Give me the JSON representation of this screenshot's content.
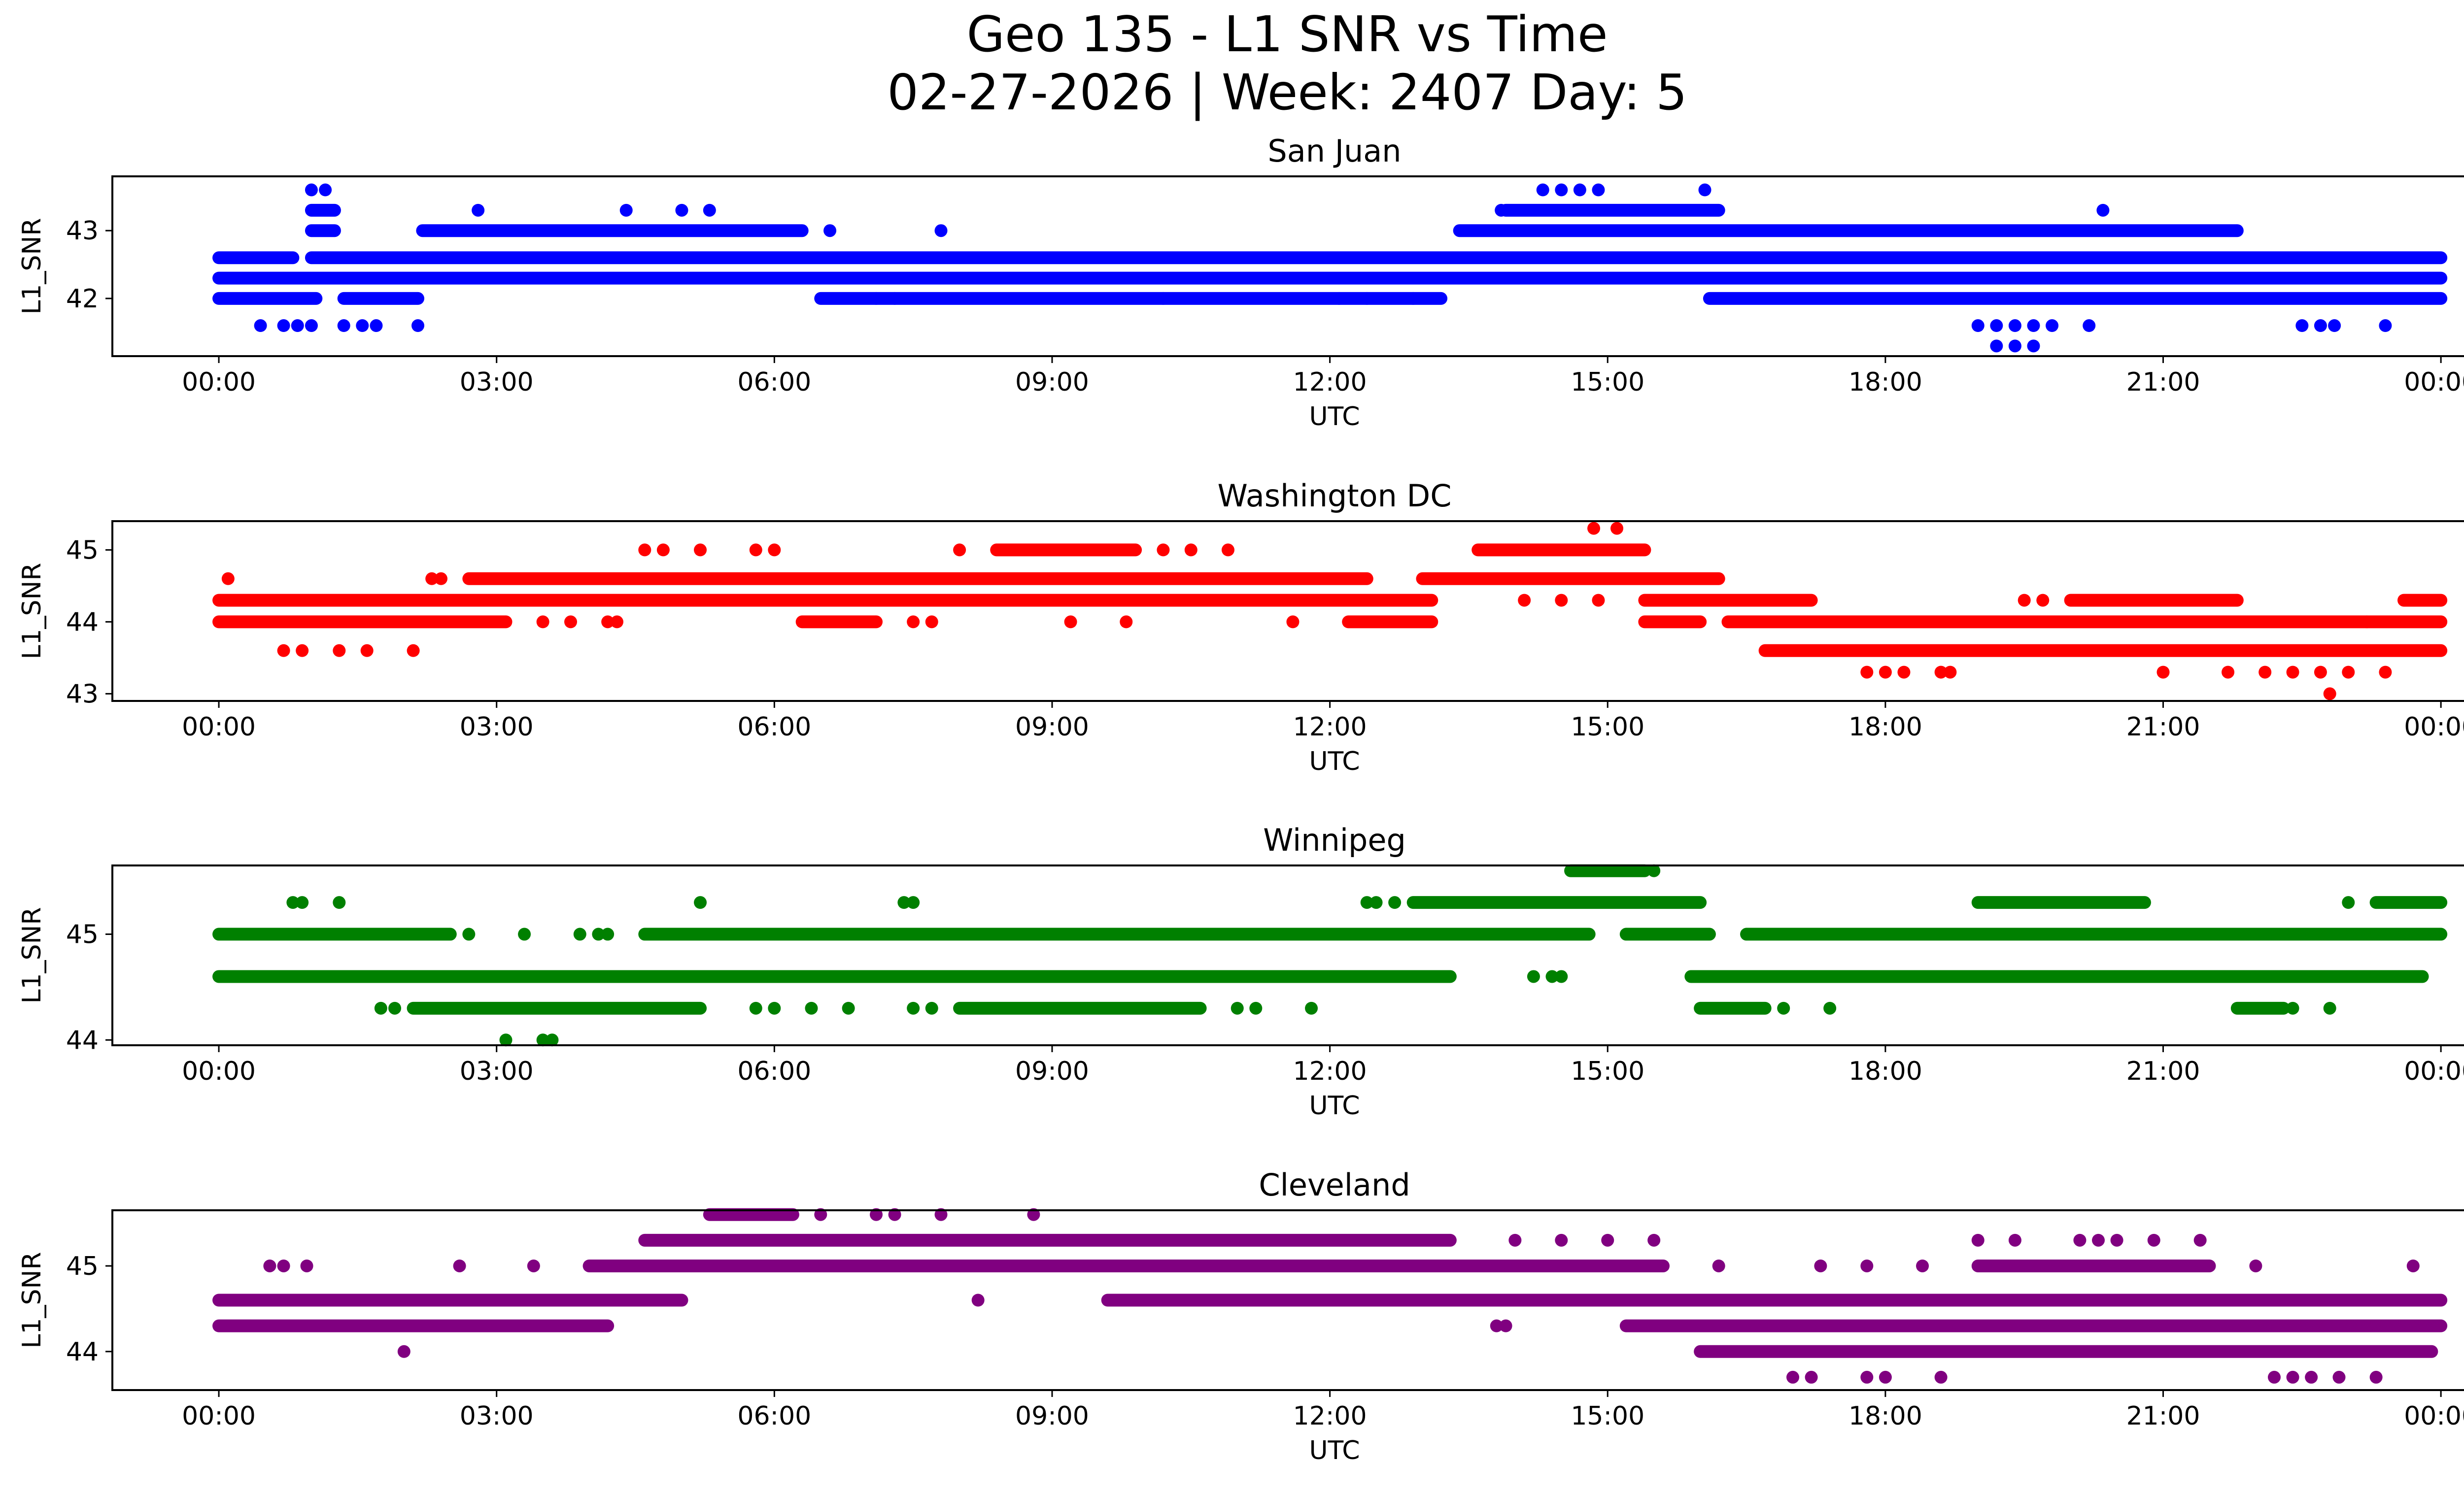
{
  "figure": {
    "title_line1": "Geo 135 - L1 SNR vs Time",
    "title_line2": "02-27-2026 | Week: 2407 Day: 5"
  },
  "chart_data": [
    {
      "type": "scatter",
      "title": "San Juan",
      "xlabel": "UTC",
      "ylabel": "L1_SNR",
      "color": "#0000ff",
      "xlim": [
        -1.15,
        25.25
      ],
      "ylim": [
        41.15,
        43.8
      ],
      "x_ticks": [
        0,
        3,
        6,
        9,
        12,
        15,
        18,
        21,
        24
      ],
      "x_tick_labels": [
        "00:00",
        "03:00",
        "06:00",
        "09:00",
        "12:00",
        "15:00",
        "18:00",
        "21:00",
        "00:00"
      ],
      "y_ticks": [
        42,
        43
      ],
      "y_tick_labels": [
        "42",
        "43"
      ],
      "bands": [
        {
          "y": 42.0,
          "ranges": [
            [
              0.0,
              1.05
            ],
            [
              1.35,
              2.15
            ],
            [
              6.5,
              13.2
            ],
            [
              16.1,
              24.0
            ]
          ]
        },
        {
          "y": 42.3,
          "ranges": [
            [
              0.0,
              24.0
            ]
          ]
        },
        {
          "y": 42.6,
          "ranges": [
            [
              0.0,
              0.8
            ],
            [
              1.0,
              24.0
            ]
          ]
        },
        {
          "y": 43.0,
          "ranges": [
            [
              1.0,
              1.25
            ],
            [
              2.2,
              6.3
            ],
            [
              13.4,
              21.8
            ]
          ]
        },
        {
          "y": 43.3,
          "ranges": [
            [
              1.0,
              1.25
            ],
            [
              13.9,
              16.2
            ]
          ]
        }
      ],
      "points": [
        {
          "x": 0.45,
          "y": 41.6
        },
        {
          "x": 0.7,
          "y": 41.6
        },
        {
          "x": 0.85,
          "y": 41.6
        },
        {
          "x": 1.0,
          "y": 41.6
        },
        {
          "x": 1.35,
          "y": 41.6
        },
        {
          "x": 1.55,
          "y": 41.6
        },
        {
          "x": 1.7,
          "y": 41.6
        },
        {
          "x": 2.15,
          "y": 41.6
        },
        {
          "x": 1.0,
          "y": 43.6
        },
        {
          "x": 1.15,
          "y": 43.6
        },
        {
          "x": 2.8,
          "y": 43.3
        },
        {
          "x": 4.4,
          "y": 43.3
        },
        {
          "x": 5.0,
          "y": 43.3
        },
        {
          "x": 5.3,
          "y": 43.3
        },
        {
          "x": 6.6,
          "y": 43.0
        },
        {
          "x": 7.8,
          "y": 43.0
        },
        {
          "x": 7.1,
          "y": 42.0
        },
        {
          "x": 7.3,
          "y": 42.0
        },
        {
          "x": 10.2,
          "y": 42.0
        },
        {
          "x": 12.1,
          "y": 42.0
        },
        {
          "x": 12.4,
          "y": 42.0
        },
        {
          "x": 12.9,
          "y": 42.0
        },
        {
          "x": 14.3,
          "y": 43.6
        },
        {
          "x": 14.5,
          "y": 43.6
        },
        {
          "x": 14.7,
          "y": 43.6
        },
        {
          "x": 14.9,
          "y": 43.6
        },
        {
          "x": 16.05,
          "y": 43.6
        },
        {
          "x": 13.85,
          "y": 43.3
        },
        {
          "x": 19.0,
          "y": 41.6
        },
        {
          "x": 19.2,
          "y": 41.6
        },
        {
          "x": 19.4,
          "y": 41.6
        },
        {
          "x": 19.6,
          "y": 41.6
        },
        {
          "x": 19.8,
          "y": 41.6
        },
        {
          "x": 20.2,
          "y": 41.6
        },
        {
          "x": 20.35,
          "y": 43.3
        },
        {
          "x": 19.2,
          "y": 41.3
        },
        {
          "x": 19.4,
          "y": 41.3
        },
        {
          "x": 19.6,
          "y": 41.3
        },
        {
          "x": 22.5,
          "y": 41.6
        },
        {
          "x": 22.7,
          "y": 41.6
        },
        {
          "x": 22.85,
          "y": 41.6
        },
        {
          "x": 23.4,
          "y": 41.6
        }
      ]
    },
    {
      "type": "scatter",
      "title": "Washington DC",
      "xlabel": "UTC",
      "ylabel": "L1_SNR",
      "color": "#ff0000",
      "xlim": [
        -1.15,
        25.25
      ],
      "ylim": [
        42.9,
        45.4
      ],
      "x_ticks": [
        0,
        3,
        6,
        9,
        12,
        15,
        18,
        21,
        24
      ],
      "x_tick_labels": [
        "00:00",
        "03:00",
        "06:00",
        "09:00",
        "12:00",
        "15:00",
        "18:00",
        "21:00",
        "00:00"
      ],
      "y_ticks": [
        43,
        44,
        45
      ],
      "y_tick_labels": [
        "43",
        "44",
        "45"
      ],
      "bands": [
        {
          "y": 43.6,
          "ranges": [
            [
              16.7,
              24.0
            ]
          ]
        },
        {
          "y": 44.0,
          "ranges": [
            [
              0.0,
              3.1
            ],
            [
              6.3,
              7.1
            ],
            [
              12.2,
              13.1
            ],
            [
              15.4,
              16.0
            ],
            [
              16.3,
              24.0
            ]
          ]
        },
        {
          "y": 44.3,
          "ranges": [
            [
              0.0,
              13.1
            ],
            [
              15.4,
              17.2
            ],
            [
              20.0,
              21.8
            ],
            [
              23.6,
              24.0
            ]
          ]
        },
        {
          "y": 44.6,
          "ranges": [
            [
              2.7,
              12.4
            ],
            [
              13.0,
              16.2
            ]
          ]
        },
        {
          "y": 45.0,
          "ranges": [
            [
              8.4,
              9.9
            ],
            [
              13.6,
              15.4
            ]
          ]
        }
      ],
      "points": [
        {
          "x": 0.1,
          "y": 44.6
        },
        {
          "x": 0.7,
          "y": 43.6
        },
        {
          "x": 0.9,
          "y": 43.6
        },
        {
          "x": 1.3,
          "y": 43.6
        },
        {
          "x": 1.6,
          "y": 43.6
        },
        {
          "x": 2.1,
          "y": 43.6
        },
        {
          "x": 2.3,
          "y": 44.6
        },
        {
          "x": 2.4,
          "y": 44.6
        },
        {
          "x": 3.5,
          "y": 44.0
        },
        {
          "x": 3.8,
          "y": 44.0
        },
        {
          "x": 4.2,
          "y": 44.0
        },
        {
          "x": 4.3,
          "y": 44.0
        },
        {
          "x": 4.6,
          "y": 45.0
        },
        {
          "x": 4.8,
          "y": 45.0
        },
        {
          "x": 5.2,
          "y": 45.0
        },
        {
          "x": 5.8,
          "y": 45.0
        },
        {
          "x": 6.0,
          "y": 45.0
        },
        {
          "x": 7.5,
          "y": 44.0
        },
        {
          "x": 7.7,
          "y": 44.0
        },
        {
          "x": 8.0,
          "y": 45.0
        },
        {
          "x": 9.2,
          "y": 44.0
        },
        {
          "x": 9.8,
          "y": 44.0
        },
        {
          "x": 10.2,
          "y": 45.0
        },
        {
          "x": 10.5,
          "y": 45.0
        },
        {
          "x": 10.9,
          "y": 45.0
        },
        {
          "x": 11.6,
          "y": 44.0
        },
        {
          "x": 14.1,
          "y": 44.3
        },
        {
          "x": 14.5,
          "y": 44.3
        },
        {
          "x": 14.9,
          "y": 44.3
        },
        {
          "x": 14.85,
          "y": 45.3
        },
        {
          "x": 15.1,
          "y": 45.3
        },
        {
          "x": 17.8,
          "y": 43.3
        },
        {
          "x": 18.0,
          "y": 43.3
        },
        {
          "x": 18.2,
          "y": 43.3
        },
        {
          "x": 18.6,
          "y": 43.3
        },
        {
          "x": 18.7,
          "y": 43.3
        },
        {
          "x": 19.5,
          "y": 44.3
        },
        {
          "x": 19.7,
          "y": 44.3
        },
        {
          "x": 21.0,
          "y": 43.3
        },
        {
          "x": 21.7,
          "y": 43.3
        },
        {
          "x": 22.1,
          "y": 43.3
        },
        {
          "x": 22.4,
          "y": 43.3
        },
        {
          "x": 22.7,
          "y": 43.3
        },
        {
          "x": 23.0,
          "y": 43.3
        },
        {
          "x": 23.4,
          "y": 43.3
        },
        {
          "x": 22.8,
          "y": 43.0
        },
        {
          "x": 23.2,
          "y": 44.0
        }
      ]
    },
    {
      "type": "scatter",
      "title": "Winnipeg",
      "xlabel": "UTC",
      "ylabel": "L1_SNR",
      "color": "#008000",
      "xlim": [
        -1.15,
        25.25
      ],
      "ylim": [
        43.95,
        45.65
      ],
      "x_ticks": [
        0,
        3,
        6,
        9,
        12,
        15,
        18,
        21,
        24
      ],
      "x_tick_labels": [
        "00:00",
        "03:00",
        "06:00",
        "09:00",
        "12:00",
        "15:00",
        "18:00",
        "21:00",
        "00:00"
      ],
      "y_ticks": [
        44,
        45
      ],
      "y_tick_labels": [
        "44",
        "45"
      ],
      "bands": [
        {
          "y": 44.3,
          "ranges": [
            [
              2.1,
              5.2
            ],
            [
              8.0,
              10.6
            ],
            [
              16.0,
              16.7
            ],
            [
              21.8,
              22.3
            ]
          ]
        },
        {
          "y": 44.6,
          "ranges": [
            [
              0.0,
              13.3
            ],
            [
              15.9,
              23.8
            ]
          ]
        },
        {
          "y": 45.0,
          "ranges": [
            [
              0.0,
              2.5
            ],
            [
              4.6,
              14.8
            ],
            [
              15.2,
              16.1
            ],
            [
              16.5,
              24.0
            ]
          ]
        },
        {
          "y": 45.3,
          "ranges": [
            [
              12.9,
              16.0
            ],
            [
              19.0,
              20.8
            ],
            [
              23.3,
              24.0
            ]
          ]
        },
        {
          "y": 45.6,
          "ranges": [
            [
              14.6,
              15.4
            ]
          ]
        }
      ],
      "points": [
        {
          "x": 0.8,
          "y": 45.3
        },
        {
          "x": 0.9,
          "y": 45.3
        },
        {
          "x": 1.3,
          "y": 45.3
        },
        {
          "x": 1.75,
          "y": 44.3
        },
        {
          "x": 1.9,
          "y": 44.3
        },
        {
          "x": 2.7,
          "y": 45.0
        },
        {
          "x": 3.1,
          "y": 44.0
        },
        {
          "x": 3.5,
          "y": 44.0
        },
        {
          "x": 3.6,
          "y": 44.0
        },
        {
          "x": 3.3,
          "y": 45.0
        },
        {
          "x": 3.9,
          "y": 45.0
        },
        {
          "x": 4.1,
          "y": 45.0
        },
        {
          "x": 4.2,
          "y": 45.0
        },
        {
          "x": 5.2,
          "y": 45.3
        },
        {
          "x": 5.8,
          "y": 44.3
        },
        {
          "x": 6.0,
          "y": 44.3
        },
        {
          "x": 6.4,
          "y": 44.3
        },
        {
          "x": 6.8,
          "y": 44.3
        },
        {
          "x": 7.4,
          "y": 45.3
        },
        {
          "x": 7.5,
          "y": 45.3
        },
        {
          "x": 7.5,
          "y": 44.3
        },
        {
          "x": 7.7,
          "y": 44.3
        },
        {
          "x": 11.0,
          "y": 44.3
        },
        {
          "x": 11.2,
          "y": 44.3
        },
        {
          "x": 11.8,
          "y": 44.3
        },
        {
          "x": 12.4,
          "y": 45.3
        },
        {
          "x": 12.5,
          "y": 45.3
        },
        {
          "x": 12.7,
          "y": 45.3
        },
        {
          "x": 14.2,
          "y": 44.6
        },
        {
          "x": 14.4,
          "y": 44.6
        },
        {
          "x": 14.5,
          "y": 44.6
        },
        {
          "x": 15.5,
          "y": 45.6
        },
        {
          "x": 16.9,
          "y": 44.3
        },
        {
          "x": 17.4,
          "y": 44.3
        },
        {
          "x": 22.4,
          "y": 44.3
        },
        {
          "x": 22.8,
          "y": 44.3
        },
        {
          "x": 23.0,
          "y": 45.3
        }
      ]
    },
    {
      "type": "scatter",
      "title": "Cleveland",
      "xlabel": "UTC",
      "ylabel": "L1_SNR",
      "color": "#800080",
      "xlim": [
        -1.15,
        25.25
      ],
      "ylim": [
        43.55,
        45.65
      ],
      "x_ticks": [
        0,
        3,
        6,
        9,
        12,
        15,
        18,
        21,
        24
      ],
      "x_tick_labels": [
        "00:00",
        "03:00",
        "06:00",
        "09:00",
        "12:00",
        "15:00",
        "18:00",
        "21:00",
        "00:00"
      ],
      "y_ticks": [
        44,
        45
      ],
      "y_tick_labels": [
        "44",
        "45"
      ],
      "bands": [
        {
          "y": 44.0,
          "ranges": [
            [
              16.0,
              23.9
            ]
          ]
        },
        {
          "y": 44.3,
          "ranges": [
            [
              0.0,
              4.2
            ],
            [
              15.2,
              24.0
            ]
          ]
        },
        {
          "y": 44.6,
          "ranges": [
            [
              0.0,
              5.0
            ],
            [
              9.6,
              24.0
            ]
          ]
        },
        {
          "y": 45.0,
          "ranges": [
            [
              4.0,
              15.6
            ],
            [
              19.0,
              21.5
            ]
          ]
        },
        {
          "y": 45.3,
          "ranges": [
            [
              4.6,
              13.3
            ]
          ]
        },
        {
          "y": 45.6,
          "ranges": [
            [
              5.3,
              6.2
            ]
          ]
        }
      ],
      "points": [
        {
          "x": 0.55,
          "y": 45.0
        },
        {
          "x": 0.7,
          "y": 45.0
        },
        {
          "x": 0.95,
          "y": 45.0
        },
        {
          "x": 2.0,
          "y": 44.0
        },
        {
          "x": 2.6,
          "y": 45.0
        },
        {
          "x": 3.4,
          "y": 45.0
        },
        {
          "x": 6.5,
          "y": 45.6
        },
        {
          "x": 7.1,
          "y": 45.6
        },
        {
          "x": 7.3,
          "y": 45.6
        },
        {
          "x": 7.8,
          "y": 45.6
        },
        {
          "x": 8.8,
          "y": 45.6
        },
        {
          "x": 8.2,
          "y": 44.6
        },
        {
          "x": 13.8,
          "y": 44.3
        },
        {
          "x": 13.9,
          "y": 44.3
        },
        {
          "x": 14.0,
          "y": 45.3
        },
        {
          "x": 14.5,
          "y": 45.3
        },
        {
          "x": 15.0,
          "y": 45.3
        },
        {
          "x": 15.5,
          "y": 45.3
        },
        {
          "x": 16.2,
          "y": 45.0
        },
        {
          "x": 17.3,
          "y": 45.0
        },
        {
          "x": 17.8,
          "y": 45.0
        },
        {
          "x": 18.4,
          "y": 45.0
        },
        {
          "x": 17.0,
          "y": 43.7
        },
        {
          "x": 17.2,
          "y": 43.7
        },
        {
          "x": 17.8,
          "y": 43.7
        },
        {
          "x": 18.0,
          "y": 43.7
        },
        {
          "x": 18.6,
          "y": 43.7
        },
        {
          "x": 19.0,
          "y": 45.3
        },
        {
          "x": 19.4,
          "y": 45.3
        },
        {
          "x": 20.1,
          "y": 45.3
        },
        {
          "x": 20.3,
          "y": 45.3
        },
        {
          "x": 20.5,
          "y": 45.3
        },
        {
          "x": 20.9,
          "y": 45.3
        },
        {
          "x": 21.4,
          "y": 45.3
        },
        {
          "x": 22.2,
          "y": 43.7
        },
        {
          "x": 22.4,
          "y": 43.7
        },
        {
          "x": 22.6,
          "y": 43.7
        },
        {
          "x": 22.9,
          "y": 43.7
        },
        {
          "x": 23.3,
          "y": 43.7
        },
        {
          "x": 22.0,
          "y": 45.0
        },
        {
          "x": 23.7,
          "y": 45.0
        }
      ]
    }
  ]
}
